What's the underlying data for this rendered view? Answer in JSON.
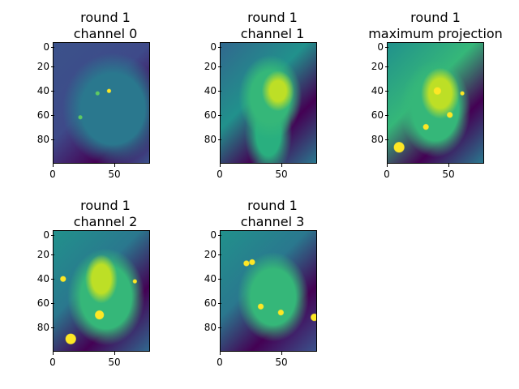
{
  "panels": [
    {
      "title_line1": "round 1",
      "title_line2": "channel 0"
    },
    {
      "title_line1": "round 1",
      "title_line2": "channel 1"
    },
    {
      "title_line1": "round 1",
      "title_line2": "maximum projection"
    },
    {
      "title_line1": "round 1",
      "title_line2": "channel 2"
    },
    {
      "title_line1": "round 1",
      "title_line2": "channel 3"
    }
  ],
  "axes": {
    "yticks": [
      "0",
      "20",
      "40",
      "60",
      "80"
    ],
    "xticks": [
      "0",
      "50"
    ]
  },
  "colors": {
    "dark": "#440154",
    "mid": "#31688e",
    "teal": "#21918c",
    "green": "#5ec962",
    "yellow": "#fde725"
  }
}
